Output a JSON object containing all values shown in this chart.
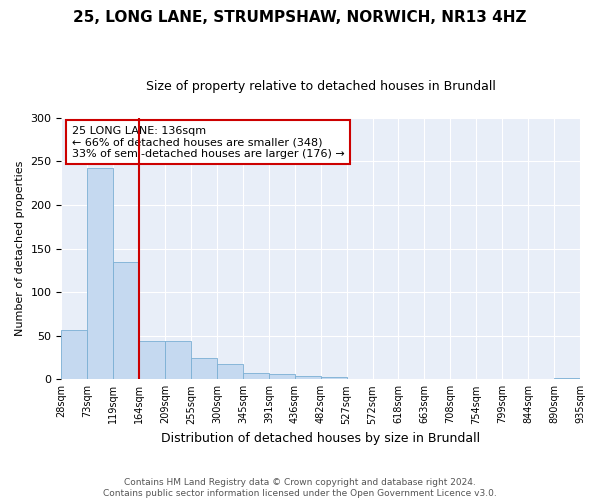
{
  "title1": "25, LONG LANE, STRUMPSHAW, NORWICH, NR13 4HZ",
  "title2": "Size of property relative to detached houses in Brundall",
  "xlabel": "Distribution of detached houses by size in Brundall",
  "ylabel": "Number of detached properties",
  "bar_values": [
    57,
    242,
    135,
    44,
    44,
    25,
    17,
    7,
    6,
    4,
    3,
    0,
    0,
    0,
    0,
    0,
    0,
    0,
    0,
    2
  ],
  "bin_labels": [
    "28sqm",
    "73sqm",
    "119sqm",
    "164sqm",
    "209sqm",
    "255sqm",
    "300sqm",
    "345sqm",
    "391sqm",
    "436sqm",
    "482sqm",
    "527sqm",
    "572sqm",
    "618sqm",
    "663sqm",
    "708sqm",
    "754sqm",
    "799sqm",
    "844sqm",
    "890sqm",
    "935sqm"
  ],
  "bar_color": "#c5d9f0",
  "bar_edge_color": "#7bafd4",
  "vline_x_index": 2,
  "vline_color": "#cc0000",
  "annotation_text": "25 LONG LANE: 136sqm\n← 66% of detached houses are smaller (348)\n33% of semi-detached houses are larger (176) →",
  "annotation_box_facecolor": "#ffffff",
  "annotation_box_edgecolor": "#cc0000",
  "ylim": [
    0,
    300
  ],
  "yticks": [
    0,
    50,
    100,
    150,
    200,
    250,
    300
  ],
  "footer_text": "Contains HM Land Registry data © Crown copyright and database right 2024.\nContains public sector information licensed under the Open Government Licence v3.0.",
  "fig_bg_color": "#ffffff",
  "plot_bg_color": "#e8eef8",
  "grid_color": "#ffffff",
  "title1_fontsize": 11,
  "title2_fontsize": 9
}
